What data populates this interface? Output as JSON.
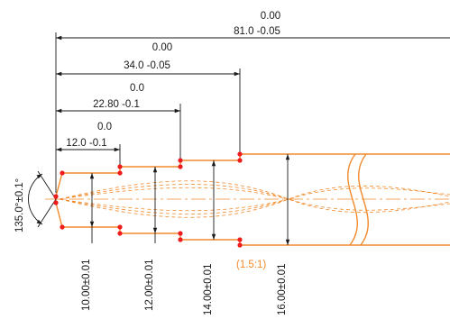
{
  "colors": {
    "outline": "#f08a2c",
    "hidden_lines": "#f08a2c",
    "dimension": "#1a1a1a",
    "points": "#ee1c1c",
    "background": "#ffffff"
  },
  "dimensions": {
    "overall_length": {
      "upper_tolerance": "0.00",
      "value": "81.0 -0.05"
    },
    "length_34": {
      "upper_tolerance": "0.00",
      "value": "34.0 -0.05"
    },
    "length_22": {
      "upper_tolerance": "0.0",
      "value": "22.80 -0.1"
    },
    "length_12": {
      "upper_tolerance": "0.0",
      "value": "12.0 -0.1"
    },
    "diameter_10": "10.00±0.01",
    "diameter_12": "12.00±0.01",
    "diameter_14": "14.00±0.01",
    "diameter_16": "16.00±0.01",
    "tip_angle": "135.0°±0.1°"
  },
  "scale_label": "(1.5:1)"
}
